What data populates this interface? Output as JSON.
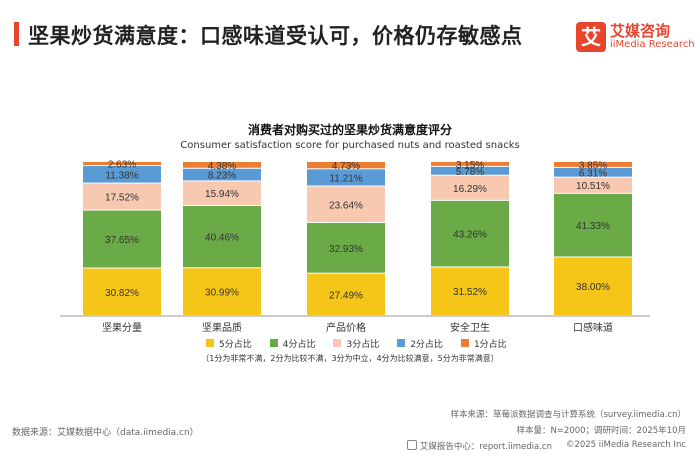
{
  "header": {
    "title": "坚果炒货满意度：口感味道受认可，价格仍存敏感点"
  },
  "logo": {
    "mark": "艾",
    "name_cn": "艾媒咨询",
    "name_en": "iiMedia Research"
  },
  "chart_data": {
    "type": "bar",
    "stacked": true,
    "normalized": true,
    "title": "消费者对购买过的坚果炒货满意度评分",
    "subtitle": "Consumer satisfaction score for purchased nuts and roasted snacks",
    "categories": [
      "坚果分量",
      "坚果品质",
      "产品价格",
      "安全卫生",
      "口感味道"
    ],
    "series": [
      {
        "name": "5分占比",
        "color": "#f5c518",
        "values": [
          30.82,
          30.99,
          27.49,
          31.52,
          38.0
        ],
        "labels": [
          "30.82%",
          "30.99%",
          "27.49%",
          "31.52%",
          "38.00%"
        ]
      },
      {
        "name": "4分占比",
        "color": "#6aab47",
        "values": [
          37.65,
          40.46,
          32.93,
          43.26,
          41.33
        ],
        "labels": [
          "37.65%",
          "40.46%",
          "32.93%",
          "43.26%",
          "41.33%"
        ]
      },
      {
        "name": "3分占比",
        "color": "#f8c9b0",
        "values": [
          17.52,
          15.94,
          23.64,
          16.29,
          10.51
        ],
        "labels": [
          "17.52%",
          "15.94%",
          "23.64%",
          "16.29%",
          "10.51%"
        ]
      },
      {
        "name": "2分占比",
        "color": "#5b9bd5",
        "values": [
          11.38,
          8.23,
          11.21,
          5.78,
          6.31
        ],
        "labels": [
          "11.38%",
          "8.23%",
          "11.21%",
          "5.78%",
          "6.31%"
        ]
      },
      {
        "name": "1分占比",
        "color": "#ed7d31",
        "values": [
          2.63,
          4.38,
          4.73,
          3.15,
          3.85
        ],
        "labels": [
          "2.63%",
          "4.38%",
          "4.73%",
          "3.15%",
          "3.85%"
        ]
      }
    ],
    "ylim": [
      0,
      100
    ],
    "grid": false,
    "legend_position": "bottom",
    "note": "（1分为非常不满，2分为比较不满，3分为中立，4分为比较满意，5分为非常满意）"
  },
  "source": {
    "left": "数据来源：艾媒数据中心（data.iimedia.cn）",
    "sample_source": "样本来源：草莓派数据调查与计算系统（survey.iimedia.cn）",
    "sample_size": "样本量：N=2000；调研时间：2025年10月"
  },
  "footer": {
    "report_center": "艾媒报告中心：report.iimedia.cn",
    "copyright": "©2025 iiMedia Research Inc"
  }
}
